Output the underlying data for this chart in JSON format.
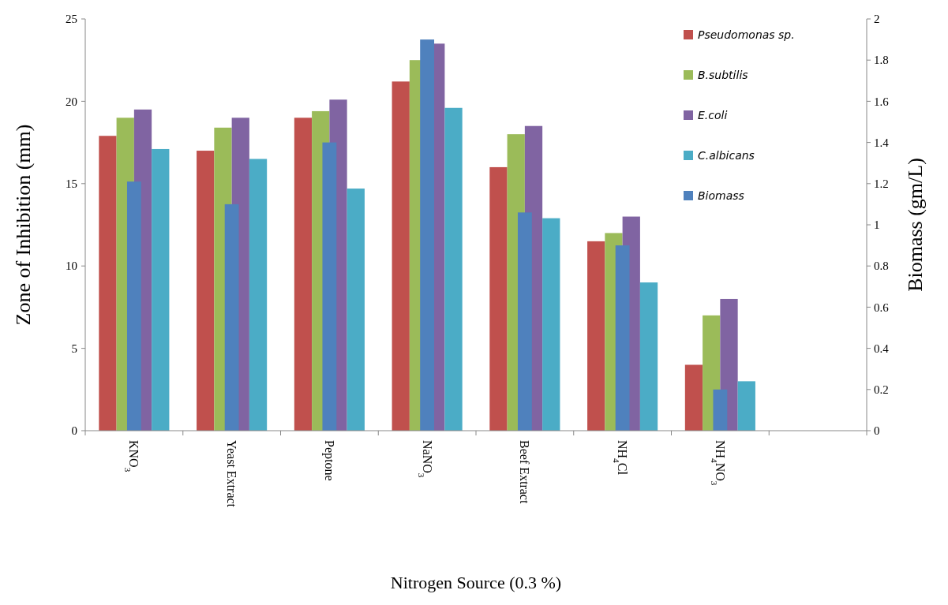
{
  "chart_data": {
    "type": "bar",
    "xlabel": "Nitrogen Source (0.3 %)",
    "ylabel": "Zone of Inhibition (mm)",
    "y2label": "Biomass (gm/L)",
    "categories": [
      "KNO$_{3}$",
      "Yeast Extract",
      "Peptone",
      "NaNO$_{3}$",
      "Beef Extract",
      "NH$_{4}$Cl",
      "NH$_{4}$NO$_{3}$",
      null
    ],
    "series": [
      {
        "name": "Pseudomonas sp.",
        "color": "#c0504d",
        "values": [
          17.9,
          17,
          19,
          21.2,
          16,
          11.5,
          4,
          null
        ]
      },
      {
        "name": "B.subtilis",
        "color": "#9bbb59",
        "values": [
          19,
          18.4,
          19.4,
          22.5,
          18,
          12,
          7,
          null
        ]
      },
      {
        "name": "E.coli",
        "color": "#8064a2",
        "values": [
          19.5,
          19,
          20.1,
          23.5,
          18.5,
          13,
          8,
          null
        ]
      },
      {
        "name": "C.albicans",
        "color": "#4bacc6",
        "values": [
          17.1,
          16.5,
          14.7,
          19.6,
          12.9,
          9,
          3,
          null
        ]
      },
      {
        "name": "Biomass",
        "color": "#4f81bd",
        "axis": "y2",
        "values": [
          1.21,
          1.1,
          1.4,
          1.9,
          1.06,
          0.9,
          0.2,
          null
        ]
      }
    ],
    "ylim": [
      0,
      25
    ],
    "yticks": [
      0,
      5,
      10,
      15,
      20,
      25
    ],
    "y2lim": [
      0,
      2
    ],
    "y2ticks": [
      0,
      0.2,
      0.4,
      0.6,
      0.8,
      1,
      1.2,
      1.4,
      1.6,
      1.8,
      2
    ],
    "grid": false,
    "legend": "top right"
  }
}
